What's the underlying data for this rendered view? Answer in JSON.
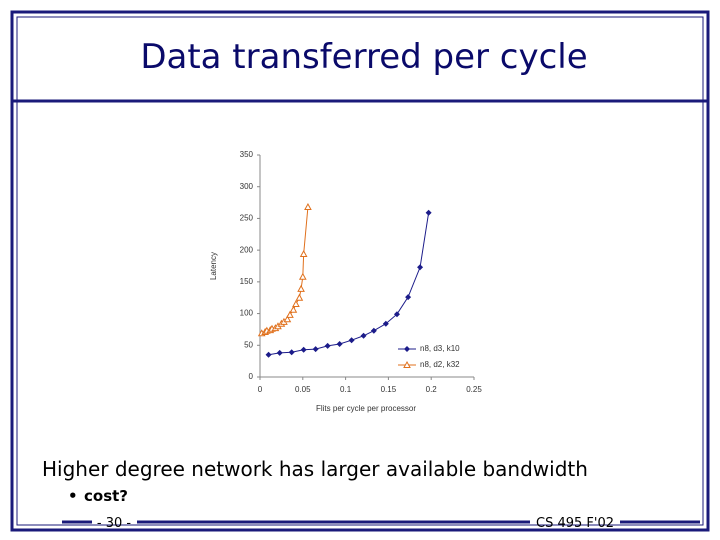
{
  "slide": {
    "title": "Data transferred per cycle",
    "bullet": "Higher degree network has larger available bandwidth",
    "sub_bullet": "cost?",
    "page_number": "- 30 -",
    "footer_right": "CS 495 F'02"
  },
  "chart_data": {
    "type": "scatter",
    "x_label": "Flits per cycle per processor",
    "y_label": "Latency",
    "xlim": [
      0,
      0.25
    ],
    "xticks": [
      0,
      0.05,
      0.1,
      0.15,
      0.2,
      0.25
    ],
    "ylim": [
      0,
      350
    ],
    "yticks": [
      0,
      50,
      100,
      150,
      200,
      250,
      300,
      350
    ],
    "legend": "lower right",
    "series": [
      {
        "name": "n8, d3, k10",
        "color": "#1c1c8a",
        "marker": "diamond",
        "x": [
          0.01,
          0.023,
          0.037,
          0.051,
          0.065,
          0.079,
          0.093,
          0.107,
          0.121,
          0.133,
          0.147,
          0.16,
          0.173,
          0.187,
          0.197
        ],
        "values": [
          35,
          38,
          39,
          43,
          44,
          49,
          52,
          58,
          65,
          73,
          84,
          99,
          126,
          173,
          259
        ]
      },
      {
        "name": "n8, d2, k32",
        "color": "#e0701c",
        "marker": "triangle",
        "x": [
          0.002,
          0.006,
          0.008,
          0.012,
          0.014,
          0.018,
          0.021,
          0.025,
          0.028,
          0.032,
          0.035,
          0.039,
          0.042,
          0.046,
          0.048,
          0.05,
          0.051,
          0.056
        ],
        "values": [
          69,
          71,
          73,
          74,
          76,
          77,
          80,
          84,
          87,
          91,
          98,
          106,
          115,
          125,
          139,
          158,
          194,
          268
        ]
      }
    ]
  }
}
